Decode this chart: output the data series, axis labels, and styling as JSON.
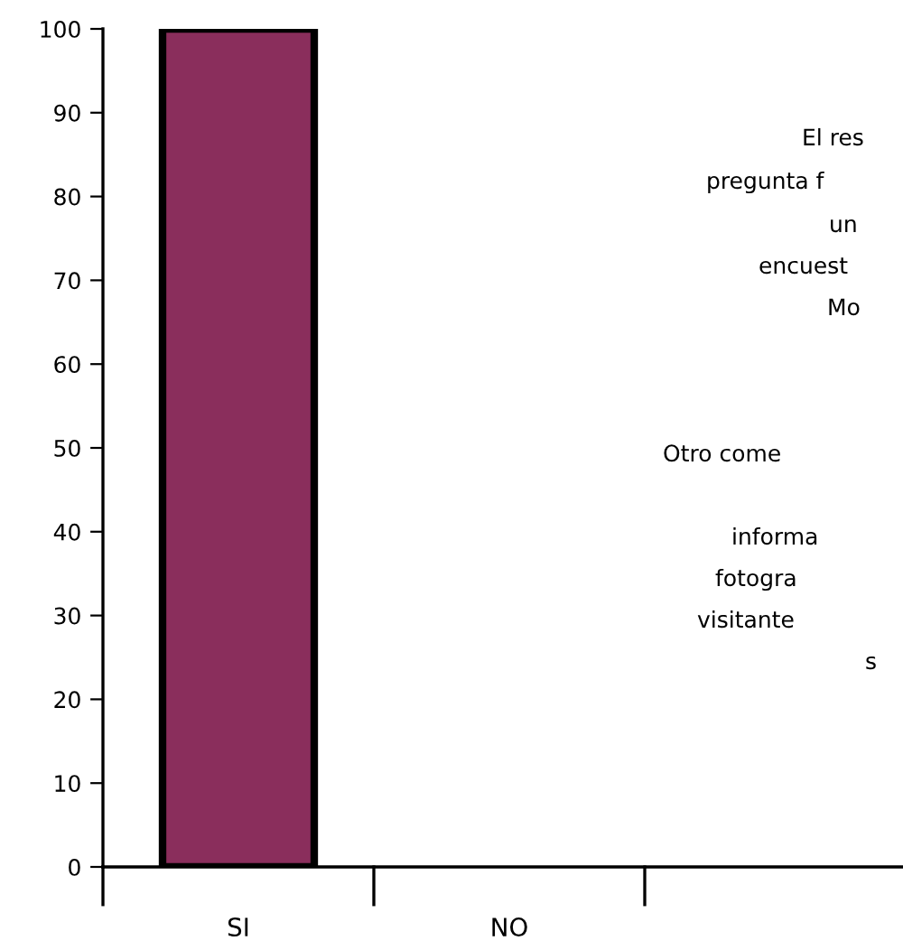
{
  "chart_data": {
    "type": "bar",
    "categories": [
      "SI",
      "NO",
      null
    ],
    "values": [
      100,
      0,
      null
    ],
    "color": "#8a2e5c",
    "ylim": [
      0,
      100
    ],
    "yticks": [
      0,
      10,
      20,
      30,
      40,
      50,
      60,
      70,
      80,
      90,
      100
    ],
    "grid": false,
    "annotations": [
      "El res",
      "pregunta f",
      "un",
      "encuest",
      "Mo",
      "Otro come",
      "informa",
      "fotogra",
      "visitante",
      "s"
    ]
  }
}
